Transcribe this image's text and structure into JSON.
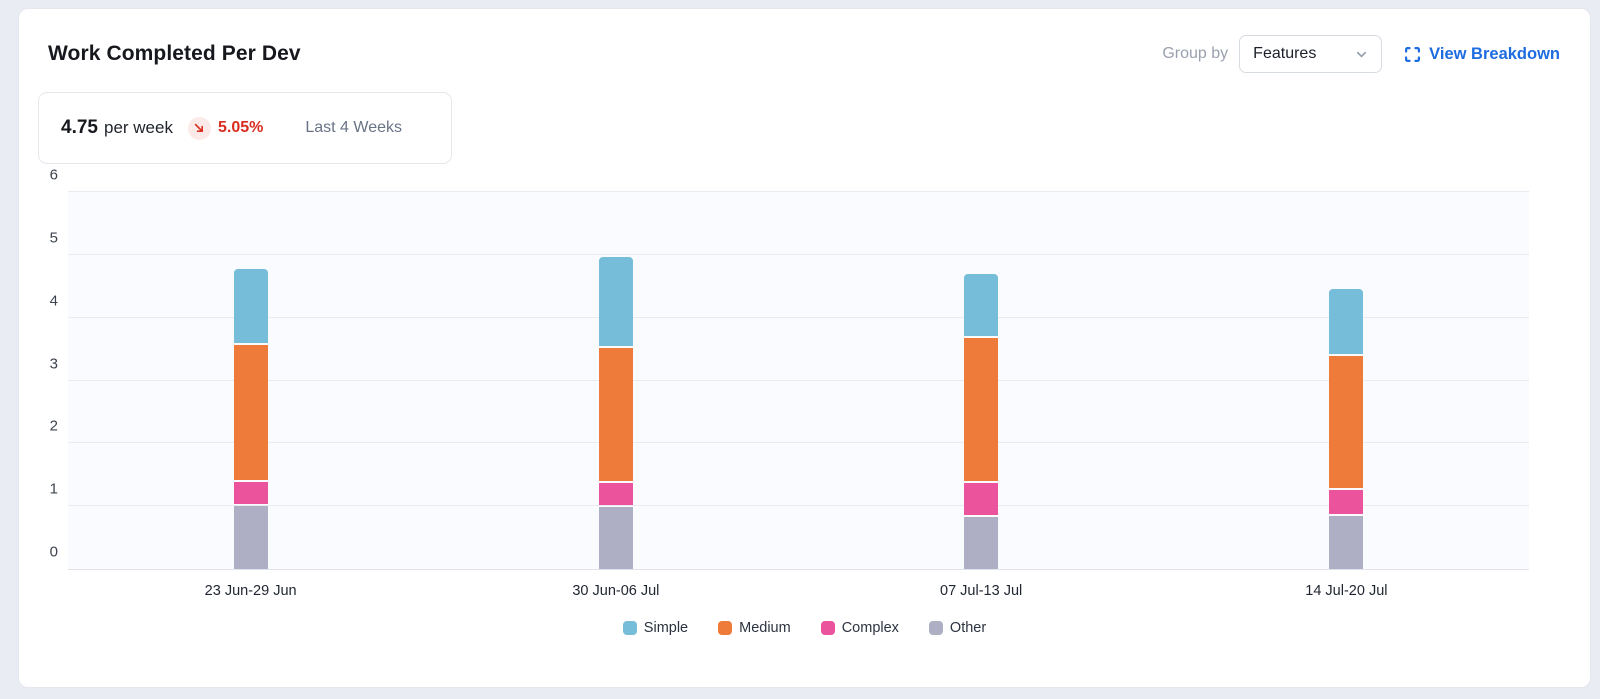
{
  "header": {
    "title": "Work Completed Per Dev",
    "group_by_label": "Group by",
    "group_by_value": "Features",
    "view_breakdown_label": "View Breakdown",
    "link_color": "#1d6ce0",
    "icons": {
      "dropdown": "chevron-down-icon",
      "breakdown": "expand-icon"
    }
  },
  "stat": {
    "value": "4.75",
    "unit": "per week",
    "trend": "down",
    "trend_icon": "arrow-down-right-icon",
    "trend_color": "#d92d20",
    "change_pct": "5.05%",
    "period": "Last 4 Weeks"
  },
  "chart_data": {
    "type": "bar",
    "stacked": true,
    "title": "Work Completed Per Dev",
    "categories": [
      "23 Jun-29 Jun",
      "30 Jun-06 Jul",
      "07 Jul-13 Jul",
      "14 Jul-20 Jul"
    ],
    "series": [
      {
        "name": "Simple",
        "color": "#76BDD9",
        "values": [
          1.2,
          1.45,
          1.02,
          1.06
        ]
      },
      {
        "name": "Medium",
        "color": "#EE7B3A",
        "values": [
          2.2,
          2.15,
          2.32,
          2.14
        ]
      },
      {
        "name": "Complex",
        "color": "#EB539D",
        "values": [
          0.36,
          0.37,
          0.51,
          0.4
        ]
      },
      {
        "name": "Other",
        "color": "#AEAEC4",
        "values": [
          1.02,
          1.0,
          0.85,
          0.86
        ]
      }
    ],
    "stack_order": "series listed top-to-bottom in each bar",
    "totals": [
      4.78,
      4.97,
      4.7,
      4.46
    ],
    "ylim": [
      0,
      6
    ],
    "yticks": [
      0,
      1,
      2,
      3,
      4,
      5,
      6
    ],
    "grid": true,
    "legend_position": "bottom",
    "plot_background": "#FAFBFE"
  }
}
